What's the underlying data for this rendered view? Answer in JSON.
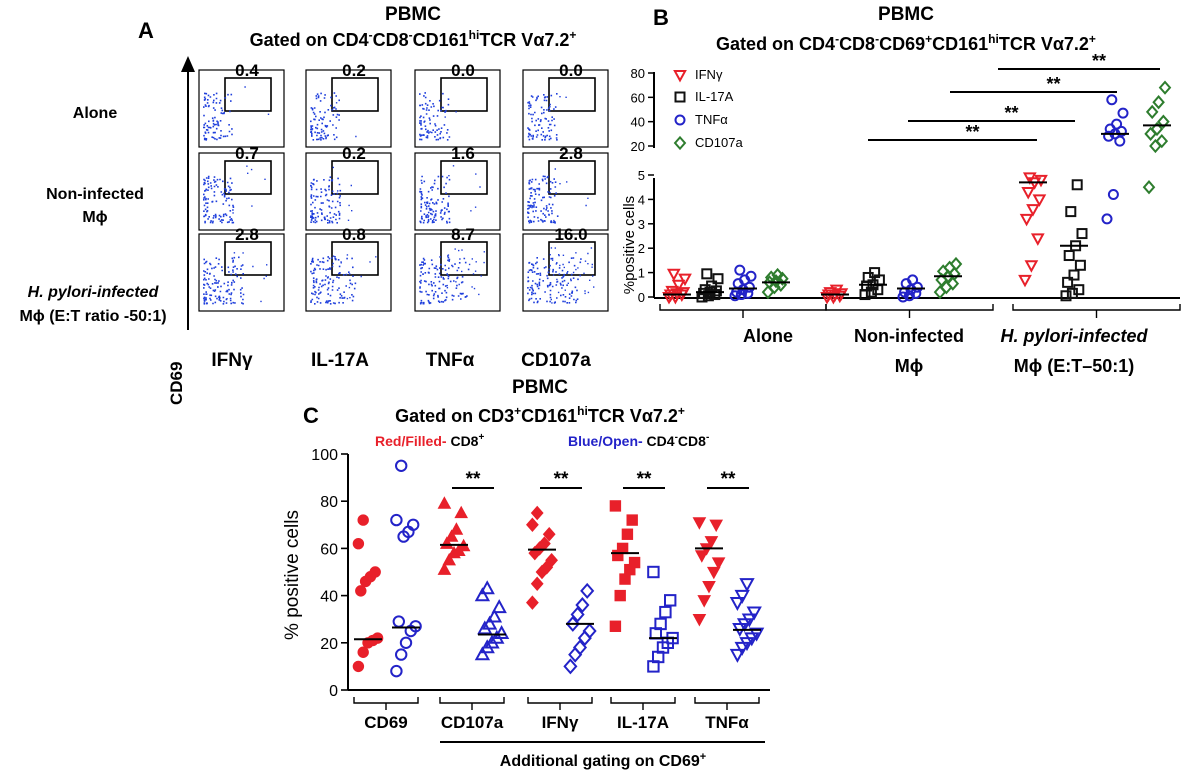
{
  "colors": {
    "red": "#e8202a",
    "blue": "#2323c8",
    "black": "#111111",
    "green": "#2e7d2e",
    "dots": "#1f3fdc"
  },
  "panelA": {
    "letter": "A",
    "title": "PBMC",
    "gate": {
      "base": "Gated on CD4",
      "sup1": "-",
      "mid": "CD8",
      "sup2": "-",
      "mid2": "CD161",
      "sup3": "hi",
      "mid3": "TCR Vα7.2",
      "sup4": "+"
    },
    "y_axis": "CD69",
    "rows": [
      {
        "label": [
          "Alone"
        ],
        "values": [
          "0.4",
          "0.2",
          "0.0",
          "0.0"
        ]
      },
      {
        "label": [
          "Non-infected",
          "Mϕ"
        ],
        "values": [
          "0.7",
          "0.2",
          "1.6",
          "2.8"
        ]
      },
      {
        "label": [
          "H. pylori-infected",
          "Mϕ (E:T ratio -50:1)"
        ],
        "values": [
          "2.8",
          "0.8",
          "8.7",
          "16.0"
        ]
      }
    ],
    "columns": [
      "IFNγ",
      "IL-17A",
      "TNFα",
      "CD107a"
    ]
  },
  "panelB": {
    "letter": "B",
    "title": "PBMC",
    "gate": {
      "base": "Gated on CD4",
      "sup1": "-",
      "mid": "CD8",
      "sup2": "-",
      "mid2": "CD69",
      "sup3": "+",
      "mid3": "CD161",
      "sup4": "hi",
      "mid4": "TCR Vα7.2",
      "sup5": "+"
    },
    "ylabel": "%positive cells",
    "legend": [
      "IFNγ",
      "IL-17A",
      "TNFα",
      "CD107a"
    ],
    "groups": [
      [
        "Alone"
      ],
      [
        "Non-infected",
        "Mϕ"
      ],
      [
        "H. pylori-infected",
        "Mϕ (E:T–50:1)"
      ]
    ],
    "sig": [
      "**",
      "**",
      "**",
      "**"
    ]
  },
  "panelC": {
    "letter": "C",
    "title": "PBMC",
    "gate": {
      "base": "Gated on CD3",
      "sup1": "+",
      "mid": "CD161",
      "sup2": "hi",
      "mid2": "TCR Vα7.2",
      "sup3": "+"
    },
    "subtitle_red": "Red/Filled-",
    "subtitle_red_b": " CD8",
    "subtitle_red_sup": "+",
    "subtitle_blue": "Blue/Open-",
    "subtitle_blue_b": " CD4",
    "subtitle_blue_sup1": "-",
    "subtitle_blue_c": "CD8",
    "subtitle_blue_sup2": "-",
    "ylabel": "% positive cells",
    "additional": "Additional gating on CD69",
    "additional_sup": "+",
    "sig": "**"
  },
  "chart_data": [
    {
      "type": "scatter",
      "title": "PBMC Gated on CD4-CD8-CD69+CD161hiTCR Vα7.2+",
      "ylabel": "%positive cells",
      "yaxis": {
        "lower": [
          0,
          5
        ],
        "lower_ticks": [
          0,
          1,
          2,
          3,
          4,
          5
        ],
        "upper": [
          20,
          80
        ],
        "upper_ticks": [
          20,
          40,
          60,
          80
        ]
      },
      "categories": [
        "Alone",
        "Non-infected Mϕ",
        "H. pylori-infected Mϕ (E:T–50:1)"
      ],
      "series": [
        {
          "name": "IFNγ",
          "marker": "triangle-down",
          "color": "#e8202a",
          "medians": [
            0.1,
            0.1,
            4.7
          ],
          "values": [
            [
              0.0,
              0.0,
              0.1,
              0.1,
              0.15,
              0.2,
              0.25,
              0.5,
              0.75,
              0.95
            ],
            [
              0.0,
              0.0,
              0.05,
              0.1,
              0.1,
              0.15,
              0.2,
              0.3
            ],
            [
              0.7,
              1.3,
              2.4,
              3.2,
              3.6,
              4.0,
              4.3,
              4.7,
              4.8,
              4.9
            ]
          ]
        },
        {
          "name": "IL-17A",
          "marker": "square",
          "color": "#111111",
          "medians": [
            0.2,
            0.5,
            2.1
          ],
          "values": [
            [
              0.0,
              0.05,
              0.1,
              0.15,
              0.2,
              0.25,
              0.3,
              0.45,
              0.75,
              0.95
            ],
            [
              0.1,
              0.2,
              0.3,
              0.45,
              0.5,
              0.7,
              0.8,
              1.0
            ],
            [
              0.05,
              0.15,
              0.3,
              0.6,
              0.9,
              1.3,
              1.7,
              2.1,
              2.6,
              3.5,
              4.6
            ]
          ]
        },
        {
          "name": "TNFα",
          "marker": "circle",
          "color": "#2323c8",
          "medians": [
            0.35,
            0.35,
            30
          ],
          "values": [
            [
              0.05,
              0.1,
              0.15,
              0.2,
              0.3,
              0.4,
              0.55,
              0.7,
              0.85,
              1.1
            ],
            [
              0.0,
              0.05,
              0.15,
              0.2,
              0.3,
              0.4,
              0.55,
              0.7
            ],
            [
              3.2,
              4.2,
              24,
              28,
              30,
              32,
              34,
              38,
              47,
              58
            ]
          ]
        },
        {
          "name": "CD107a",
          "marker": "diamond",
          "color": "#2e7d2e",
          "medians": [
            0.6,
            0.85,
            37
          ],
          "values": [
            [
              0.2,
              0.4,
              0.5,
              0.6,
              0.65,
              0.75,
              0.8,
              0.9
            ],
            [
              0.2,
              0.4,
              0.55,
              0.7,
              0.85,
              0.95,
              1.05,
              1.2,
              1.35
            ],
            [
              4.5,
              20,
              24,
              30,
              34,
              40,
              48,
              56,
              68
            ]
          ]
        }
      ],
      "significance": [
        {
          "from": "Non-infected Mϕ",
          "to": "IFNγ infected",
          "label": "**"
        },
        {
          "from": "Non-infected Mϕ",
          "to": "IL-17A infected",
          "label": "**"
        },
        {
          "from": "Non-infected Mϕ",
          "to": "TNFα infected",
          "label": "**"
        },
        {
          "from": "Non-infected Mϕ",
          "to": "CD107a infected",
          "label": "**"
        }
      ]
    },
    {
      "type": "scatter",
      "title": "PBMC Gated on CD3+CD161hiTCR Vα7.2+",
      "ylabel": "% positive cells",
      "ylim": [
        0,
        100
      ],
      "yticks": [
        0,
        20,
        40,
        60,
        80,
        100
      ],
      "categories": [
        "CD69",
        "CD107a",
        "IFNγ",
        "IL-17A",
        "TNFα"
      ],
      "series": [
        {
          "name": "CD8+ (Red/Filled)",
          "color": "#e8202a",
          "markers": [
            "circle",
            "triangle-up",
            "diamond",
            "square",
            "triangle-down"
          ],
          "medians": [
            21.5,
            61.5,
            59.5,
            58,
            60
          ],
          "values": [
            [
              10,
              16,
              20,
              21,
              22,
              42,
              46,
              48,
              50,
              62,
              72
            ],
            [
              51,
              55,
              58,
              59,
              61,
              62,
              65,
              68,
              75,
              79
            ],
            [
              37,
              45,
              50,
              52,
              55,
              58,
              60,
              62,
              66,
              70,
              75
            ],
            [
              27,
              40,
              47,
              51,
              54,
              57,
              60,
              66,
              72,
              78
            ],
            [
              30,
              38,
              44,
              50,
              54,
              57,
              60,
              63,
              70,
              71
            ]
          ]
        },
        {
          "name": "CD4-CD8- (Blue/Open)",
          "color": "#2323c8",
          "markers": [
            "circle",
            "triangle-up",
            "diamond",
            "square",
            "triangle-down"
          ],
          "medians": [
            26.5,
            23.5,
            28,
            22,
            25.5
          ],
          "values": [
            [
              8,
              15,
              20,
              25,
              27,
              29,
              65,
              67,
              70,
              72,
              95
            ],
            [
              15,
              18,
              20,
              22,
              24,
              26,
              28,
              31,
              35,
              40,
              43
            ],
            [
              10,
              15,
              18,
              22,
              25,
              28,
              32,
              36,
              42
            ],
            [
              10,
              14,
              18,
              20,
              22,
              24,
              28,
              33,
              38,
              50
            ],
            [
              15,
              18,
              20,
              22,
              24,
              26,
              28,
              30,
              33,
              37,
              40,
              45
            ]
          ]
        }
      ],
      "significance": [
        {
          "category": "CD107a",
          "label": "**"
        },
        {
          "category": "IFNγ",
          "label": "**"
        },
        {
          "category": "IL-17A",
          "label": "**"
        },
        {
          "category": "TNFα",
          "label": "**"
        }
      ]
    }
  ]
}
